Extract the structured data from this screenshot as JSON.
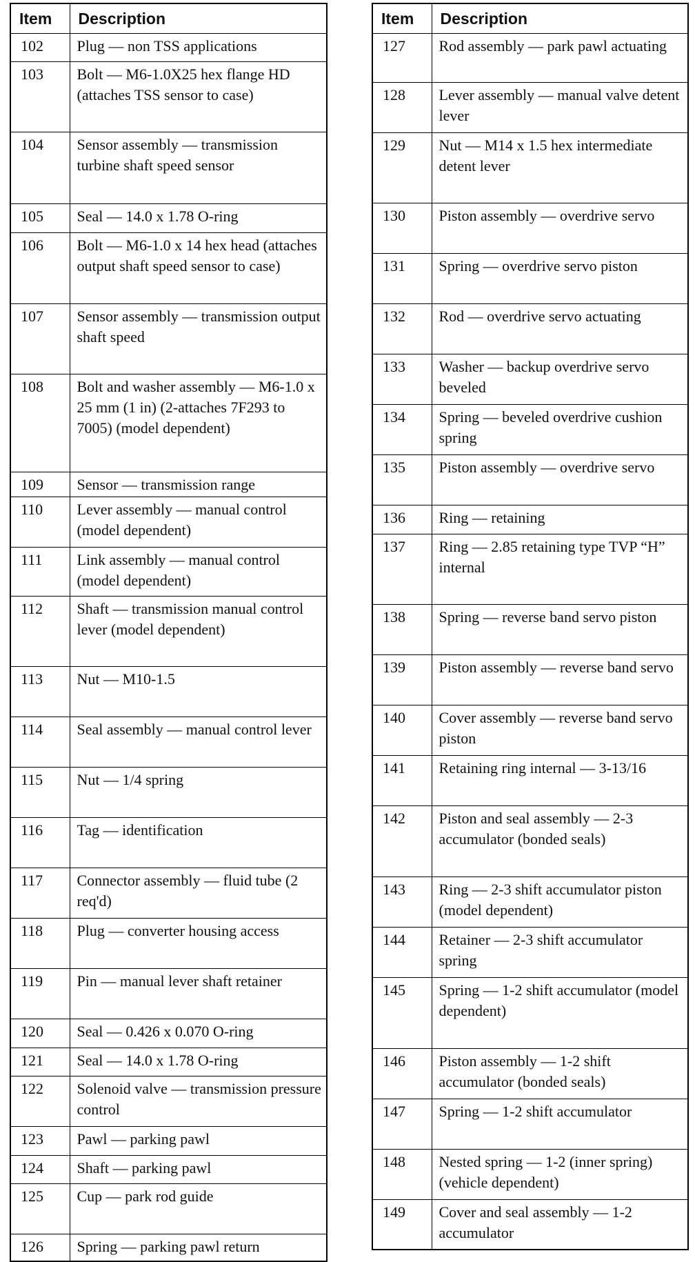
{
  "tables": [
    {
      "header": [
        "Item",
        "Description"
      ],
      "rows": [
        [
          "102",
          "Plug — non TSS applications"
        ],
        [
          "103",
          "Bolt — M6-1.0X25 hex flange HD (attaches TSS sensor to case)"
        ],
        [
          "104",
          "Sensor assembly — transmission turbine shaft speed sensor"
        ],
        [
          "105",
          "Seal — 14.0 x 1.78 O-ring"
        ],
        [
          "106",
          "Bolt — M6-1.0 x 14 hex head (attaches output shaft speed sensor to case)"
        ],
        [
          "107",
          "Sensor assembly — transmission output shaft speed"
        ],
        [
          "108",
          "Bolt and washer assembly — M6-1.0 x 25 mm (1 in) (2-attaches 7F293 to 7005) (model dependent)"
        ],
        [
          "109",
          "Sensor — transmission range"
        ],
        [
          "110",
          "Lever assembly — manual control (model dependent)"
        ],
        [
          "111",
          "Link assembly — manual control (model dependent)"
        ],
        [
          "112",
          "Shaft — transmission manual control lever (model dependent)"
        ],
        [
          "113",
          "Nut — M10-1.5"
        ],
        [
          "114",
          "Seal assembly — manual control lever"
        ],
        [
          "115",
          "Nut — 1/4 spring"
        ],
        [
          "116",
          "Tag — identification"
        ],
        [
          "117",
          "Connector assembly — fluid tube (2 req'd)"
        ],
        [
          "118",
          "Plug — converter housing access"
        ],
        [
          "119",
          "Pin — manual lever shaft retainer"
        ],
        [
          "120",
          "Seal — 0.426 x 0.070 O-ring"
        ],
        [
          "121",
          "Seal — 14.0 x 1.78 O-ring"
        ],
        [
          "122",
          "Solenoid valve — transmission pressure control"
        ],
        [
          "123",
          "Pawl — parking pawl"
        ],
        [
          "124",
          "Shaft — parking pawl"
        ],
        [
          "125",
          "Cup — park rod guide"
        ],
        [
          "126",
          "Spring — parking pawl return"
        ]
      ]
    },
    {
      "header": [
        "Item",
        "Description"
      ],
      "rows": [
        [
          "127",
          "Rod assembly — park pawl actuating"
        ],
        [
          "128",
          "Lever assembly — manual valve detent lever"
        ],
        [
          "129",
          "Nut — M14 x 1.5 hex intermediate detent lever"
        ],
        [
          "130",
          "Piston assembly — overdrive servo"
        ],
        [
          "131",
          "Spring — overdrive servo piston"
        ],
        [
          "132",
          "Rod — overdrive servo actuating"
        ],
        [
          "133",
          "Washer — backup overdrive servo beveled"
        ],
        [
          "134",
          "Spring — beveled overdrive cushion spring"
        ],
        [
          "135",
          "Piston assembly — overdrive servo"
        ],
        [
          "136",
          "Ring — retaining"
        ],
        [
          "137",
          "Ring — 2.85 retaining type TVP “H” internal"
        ],
        [
          "138",
          "Spring — reverse band servo piston"
        ],
        [
          "139",
          "Piston assembly — reverse band servo"
        ],
        [
          "140",
          "Cover assembly — reverse band servo piston"
        ],
        [
          "141",
          "Retaining ring internal — 3-13/16"
        ],
        [
          "142",
          "Piston and seal assembly — 2-3 accumulator (bonded seals)"
        ],
        [
          "143",
          "Ring — 2-3 shift accumulator piston (model dependent)"
        ],
        [
          "144",
          "Retainer — 2-3 shift accumulator spring"
        ],
        [
          "145",
          "Spring — 1-2 shift accumulator (model dependent)"
        ],
        [
          "146",
          "Piston assembly — 1-2 shift accumulator (bonded seals)"
        ],
        [
          "147",
          "Spring — 1-2 shift accumulator"
        ],
        [
          "148",
          "Nested spring — 1-2 (inner spring) (vehicle dependent)"
        ],
        [
          "149",
          "Cover and seal assembly — 1-2 accumulator"
        ]
      ]
    }
  ]
}
